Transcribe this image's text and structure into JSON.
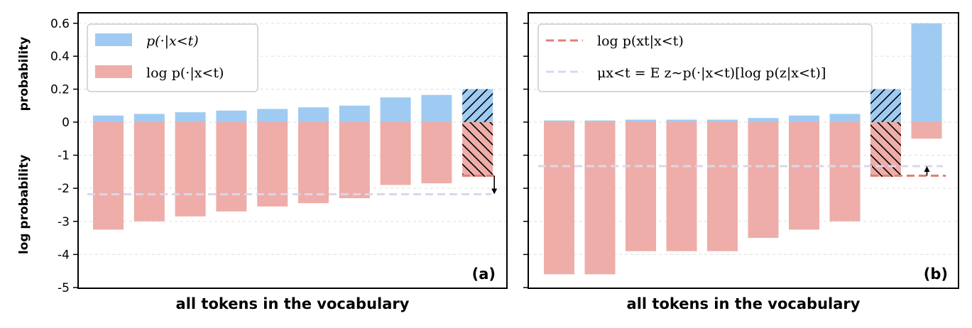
{
  "colors": {
    "prob": "#9fcbf2",
    "logprob": "#eeada8",
    "mean_line": "#dcd6ea",
    "target_line": "#e07f72",
    "hatch": "#000000",
    "grid": "#e3e3e3"
  },
  "y_axis": {
    "ticks": [
      {
        "value": 0.6,
        "label": "0.6"
      },
      {
        "value": 0.4,
        "label": "0.4"
      },
      {
        "value": 0.2,
        "label": "0.2"
      },
      {
        "value": 0,
        "label": "0"
      },
      {
        "value": -1,
        "label": "-1"
      },
      {
        "value": -2,
        "label": "-2"
      },
      {
        "value": -3,
        "label": "-3"
      },
      {
        "value": -4,
        "label": "-4"
      },
      {
        "value": -5,
        "label": "-5"
      }
    ],
    "label_top": "probability",
    "label_bottom": "log probability"
  },
  "chart_data": [
    {
      "type": "bar",
      "panel": "(a)",
      "xlabel": "all tokens in the vocabulary",
      "y_scale": "probability above 0 (0 to 0.6), log probability below 0 (0 to -5)",
      "grid": true,
      "legend_position": "top-left",
      "legend": [
        {
          "label": "p(·|x<t)",
          "kind": "patch",
          "color_key": "prob"
        },
        {
          "label": "log p(·|x<t)",
          "kind": "patch",
          "color_key": "logprob"
        }
      ],
      "series": [
        {
          "name": "p(·|x<t)",
          "values": [
            0.04,
            0.05,
            0.06,
            0.07,
            0.08,
            0.09,
            0.1,
            0.15,
            0.165,
            0.2
          ]
        },
        {
          "name": "log p(·|x<t)",
          "values": [
            -3.25,
            -3.0,
            -2.85,
            -2.7,
            -2.55,
            -2.45,
            -2.3,
            -1.9,
            -1.85,
            -1.65
          ]
        }
      ],
      "highlighted_index": 9,
      "target_logprob": -1.62,
      "mean_logprob": -2.18,
      "arrow": {
        "from": -1.62,
        "to": -2.18
      }
    },
    {
      "type": "bar",
      "panel": "(b)",
      "xlabel": "all tokens in the vocabulary",
      "y_scale": "probability above 0 (0 to 0.6), log probability below 0 (0 to -5)",
      "grid": true,
      "legend_position": "top-left",
      "legend": [
        {
          "label": "log p(xt|x<t)",
          "kind": "dashed-line",
          "color_key": "target_line"
        },
        {
          "label": "μx<t = E z∼p(·|x<t)[log p(z|x<t)]",
          "kind": "dashed-line",
          "color_key": "mean_line"
        }
      ],
      "series": [
        {
          "name": "p(·|x<t)",
          "values": [
            0.01,
            0.01,
            0.015,
            0.015,
            0.015,
            0.025,
            0.04,
            0.05,
            0.2,
            0.6
          ]
        },
        {
          "name": "log p(·|x<t)",
          "values": [
            -4.6,
            -4.6,
            -3.9,
            -3.9,
            -3.9,
            -3.5,
            -3.25,
            -3.0,
            -1.65,
            -0.5
          ]
        }
      ],
      "highlighted_index": 8,
      "target_logprob": -1.62,
      "mean_logprob": -1.33,
      "arrow": {
        "from": -1.62,
        "to": -1.33
      }
    }
  ]
}
